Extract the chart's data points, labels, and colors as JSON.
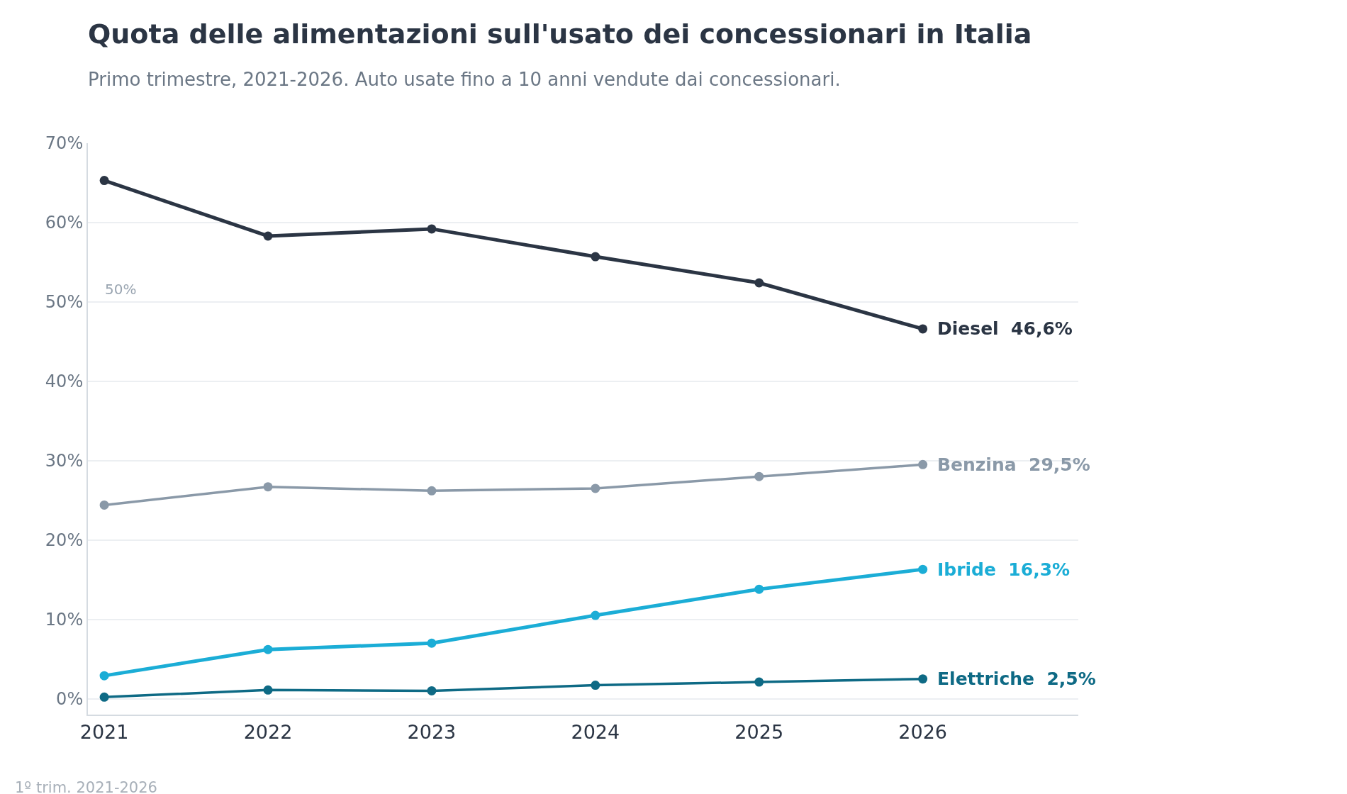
{
  "chart_data": {
    "type": "line",
    "title": "Quota delle alimentazioni sull'usato dei concessionari in Italia",
    "subtitle": "Primo trimestre, 2021-2026. Auto usate fino a 10 anni vendute dai concessionari.",
    "x": [
      2021,
      2022,
      2023,
      2024,
      2025,
      2026
    ],
    "xlim": [
      2020.9,
      2026.95
    ],
    "xticks": [
      2021,
      2022,
      2023,
      2024,
      2025,
      2026
    ],
    "ylim": [
      -2,
      70
    ],
    "yticks": [
      {
        "value": 0,
        "label": "0%"
      },
      {
        "value": 10,
        "label": "10%"
      },
      {
        "value": 20,
        "label": "20%"
      },
      {
        "value": 30,
        "label": "30%"
      },
      {
        "value": 40,
        "label": "40%"
      },
      {
        "value": 50,
        "label": "50%"
      },
      {
        "value": 60,
        "label": "60%"
      },
      {
        "value": 70,
        "label": "70%"
      }
    ],
    "grid": "y",
    "legend": false,
    "marker": "circle",
    "line_style": "solid",
    "series": [
      {
        "name": "Diesel",
        "color": "#2b3544",
        "values": [
          65.3,
          58.3,
          59.2,
          55.7,
          52.4,
          46.6
        ],
        "value_labels": [
          null,
          null,
          null,
          null,
          null,
          "46,6%"
        ]
      },
      {
        "name": "Benzina",
        "color": "#8a99a8",
        "values": [
          24.4,
          26.7,
          26.2,
          26.5,
          28.0,
          29.5
        ],
        "value_labels": [
          null,
          null,
          null,
          null,
          null,
          "29,5%"
        ]
      },
      {
        "name": "Ibride",
        "color": "#1badd6",
        "values": [
          2.9,
          6.2,
          7.0,
          10.5,
          13.8,
          16.3
        ],
        "value_labels": [
          null,
          null,
          null,
          null,
          null,
          "16,3%"
        ]
      },
      {
        "name": "Elettriche",
        "color": "#0e6a85",
        "values": [
          0.2,
          1.1,
          1.0,
          1.7,
          2.1,
          2.5
        ],
        "value_labels": [
          null,
          null,
          null,
          null,
          null,
          "2,5%"
        ]
      }
    ],
    "annotations": [
      "50%",
      "1º trim. 2021-2026"
    ]
  }
}
